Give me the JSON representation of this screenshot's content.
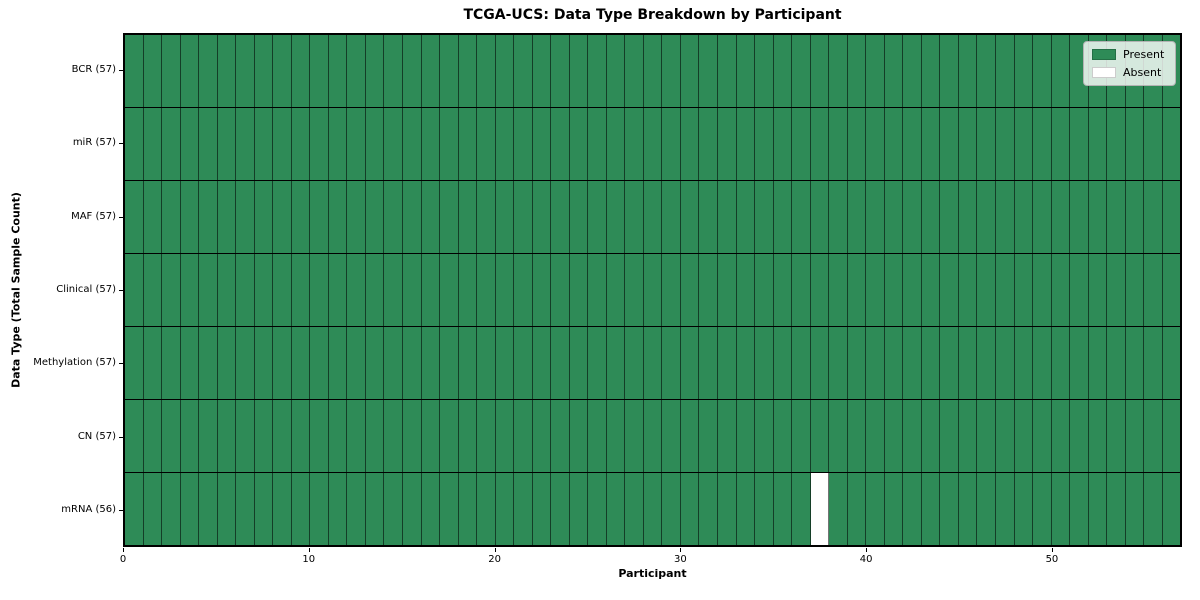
{
  "chart_data": {
    "type": "heatmap",
    "title": "TCGA-UCS: Data Type Breakdown by Participant",
    "xlabel": "Participant",
    "ylabel": "Data Type (Total Sample Count)",
    "x_range": [
      0,
      57
    ],
    "x_ticks": [
      0,
      10,
      20,
      30,
      40,
      50
    ],
    "n_participants": 57,
    "legend_position": "upper-right",
    "colors": {
      "present": "#2E8B57",
      "absent": "#FFFFFF",
      "cell_border": "rgba(0,0,0,0.55)",
      "row_border": "#000000",
      "frame": "#000000"
    },
    "legend": [
      {
        "label": "Present",
        "color": "#2E8B57"
      },
      {
        "label": "Absent",
        "color": "#FFFFFF"
      }
    ],
    "rows": [
      {
        "label": "BCR (57)",
        "data_type": "BCR",
        "total_samples": 57,
        "absent_participants": []
      },
      {
        "label": "miR (57)",
        "data_type": "miR",
        "total_samples": 57,
        "absent_participants": []
      },
      {
        "label": "MAF (57)",
        "data_type": "MAF",
        "total_samples": 57,
        "absent_participants": []
      },
      {
        "label": "Clinical (57)",
        "data_type": "Clinical",
        "total_samples": 57,
        "absent_participants": []
      },
      {
        "label": "Methylation (57)",
        "data_type": "Methylation",
        "total_samples": 57,
        "absent_participants": []
      },
      {
        "label": "CN (57)",
        "data_type": "CN",
        "total_samples": 57,
        "absent_participants": []
      },
      {
        "label": "mRNA (56)",
        "data_type": "mRNA",
        "total_samples": 56,
        "absent_participants": [
          37
        ]
      }
    ]
  }
}
